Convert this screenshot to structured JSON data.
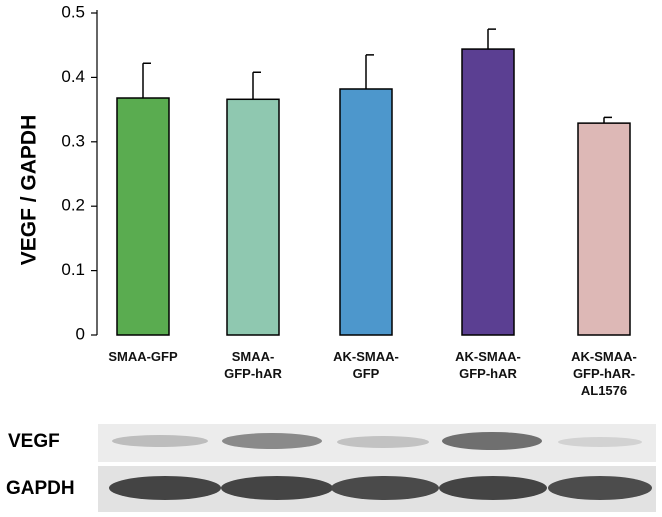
{
  "chart_data": {
    "type": "bar",
    "y_label": "VEGF / GAPDH",
    "categories": [
      "SMAA-GFP",
      "SMAA-\nGFP-hAR",
      "AK-SMAA-\nGFP",
      "AK-SMAA-\nGFP-hAR",
      "AK-SMAA-\nGFP-hAR-\nAL1576"
    ],
    "values": [
      0.368,
      0.366,
      0.382,
      0.444,
      0.329
    ],
    "errors": [
      0.054,
      0.042,
      0.053,
      0.031,
      0.009
    ],
    "colors": [
      "#5aac50",
      "#8fc8b0",
      "#4d97cc",
      "#5b3f92",
      "#ddb8b6"
    ],
    "ylim": [
      0,
      0.5
    ],
    "yticks": [
      0,
      0.1,
      0.2,
      0.3,
      0.4,
      0.5
    ]
  },
  "blot": {
    "rows": [
      "VEGF",
      "GAPDH"
    ]
  }
}
